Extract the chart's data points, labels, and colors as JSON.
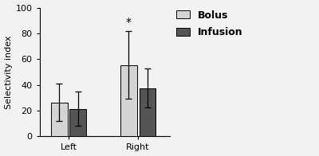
{
  "groups": [
    "Left",
    "Right"
  ],
  "bolus_values": [
    26.5,
    55.5
  ],
  "infusion_values": [
    21.5,
    37.5
  ],
  "bolus_errors": [
    14.5,
    26.0
  ],
  "infusion_errors": [
    13.5,
    15.0
  ],
  "bolus_color": "#d4d4d4",
  "infusion_color": "#555555",
  "ylabel": "Selectivity index",
  "ylim": [
    0,
    100
  ],
  "yticks": [
    0,
    20,
    40,
    60,
    80,
    100
  ],
  "bar_width": 0.28,
  "group_centers": [
    1.0,
    2.2
  ],
  "bar_gap": 0.04,
  "significance_label": "*",
  "legend_labels": [
    "Bolus",
    "Infusion"
  ],
  "background_color": "#f2f2f2",
  "edge_color": "#000000",
  "legend_fontsize": 9,
  "axis_fontsize": 8,
  "tick_fontsize": 8
}
